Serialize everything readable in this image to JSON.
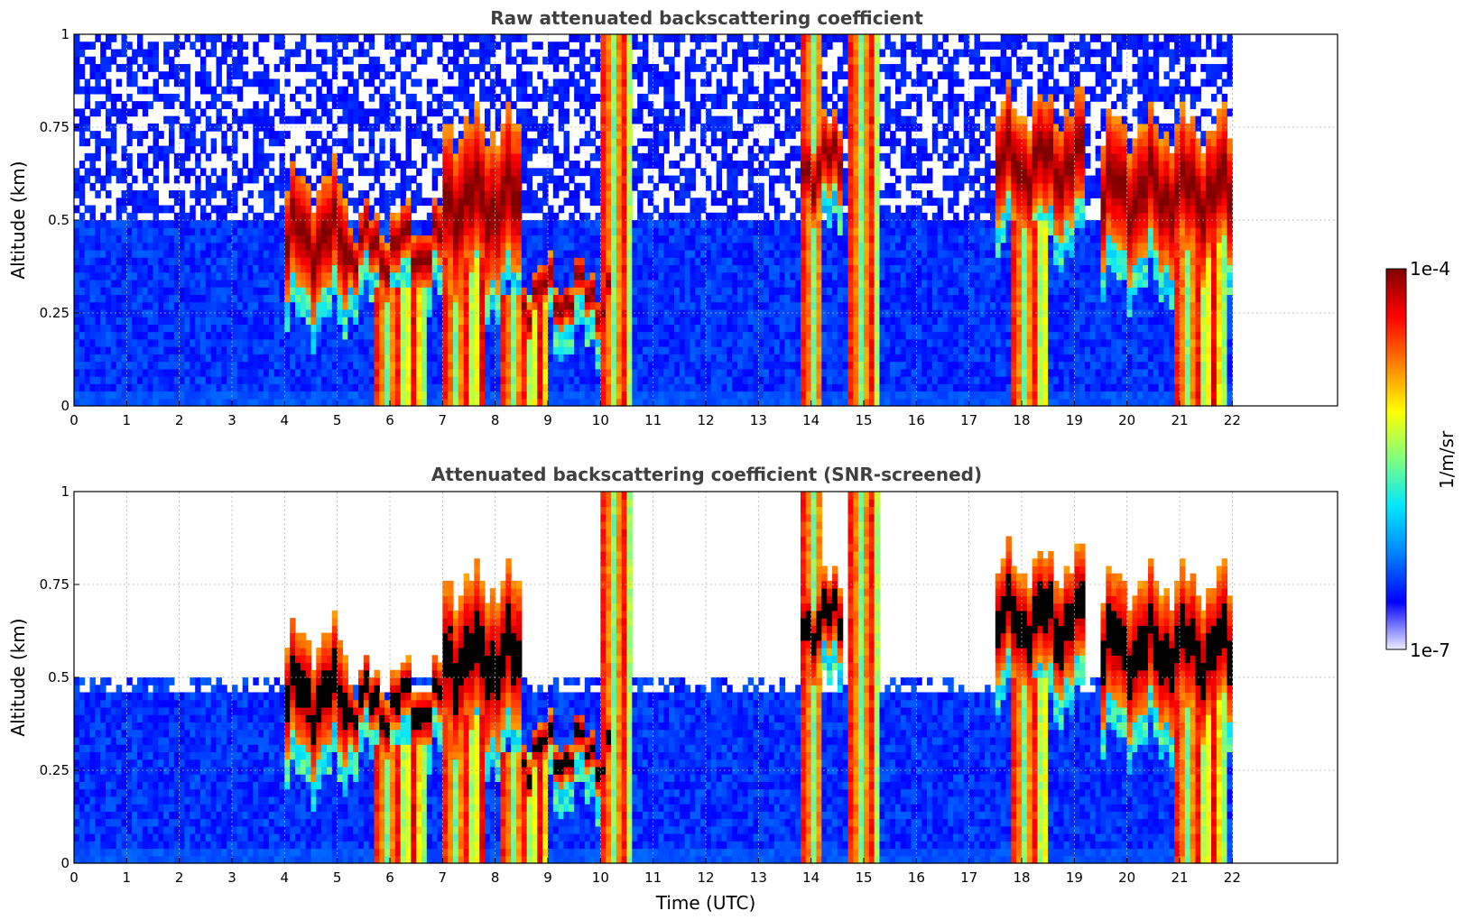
{
  "chart_data": [
    {
      "type": "heatmap",
      "panel": "top",
      "title": "Raw attenuated backscattering coefficient",
      "xlabel": "",
      "ylabel": "Altitude (km)",
      "xlim": [
        0,
        24
      ],
      "ylim": [
        0,
        1
      ],
      "x_ticks": [
        "0",
        "1",
        "2",
        "3",
        "4",
        "5",
        "6",
        "7",
        "8",
        "9",
        "10",
        "11",
        "12",
        "13",
        "14",
        "15",
        "16",
        "17",
        "18",
        "19",
        "20",
        "21",
        "22"
      ],
      "y_ticks": [
        "0",
        "0.25",
        "0.5",
        "0.75",
        "1"
      ],
      "data_end_time": 22,
      "grid": true,
      "clouds": [
        {
          "t0": 4.0,
          "t1": 5.2,
          "base": 0.3,
          "top": 0.6
        },
        {
          "t0": 5.2,
          "t1": 7.0,
          "base": 0.35,
          "top": 0.5
        },
        {
          "t0": 7.0,
          "t1": 8.5,
          "base": 0.35,
          "top": 0.75
        },
        {
          "t0": 8.5,
          "t1": 10.2,
          "base": 0.25,
          "top": 0.35
        },
        {
          "t0": 13.8,
          "t1": 14.6,
          "base": 0.55,
          "top": 0.75
        },
        {
          "t0": 17.5,
          "t1": 19.2,
          "base": 0.5,
          "top": 0.8
        },
        {
          "t0": 19.5,
          "t1": 22.0,
          "base": 0.4,
          "top": 0.75
        }
      ],
      "precip_columns": [
        {
          "t0": 5.7,
          "t1": 6.7,
          "top": 0.32
        },
        {
          "t0": 7.0,
          "t1": 7.8,
          "top": 0.4
        },
        {
          "t0": 8.1,
          "t1": 9.0,
          "top": 0.3
        },
        {
          "t0": 10.0,
          "t1": 10.6,
          "top": 1.0
        },
        {
          "t0": 13.8,
          "t1": 14.2,
          "top": 1.0
        },
        {
          "t0": 14.7,
          "t1": 15.3,
          "top": 1.0
        },
        {
          "t0": 17.8,
          "t1": 18.5,
          "top": 0.5
        },
        {
          "t0": 20.9,
          "t1": 21.9,
          "top": 0.45
        }
      ]
    },
    {
      "type": "heatmap",
      "panel": "bottom",
      "title": "Attenuated backscattering coefficient (SNR-screened)",
      "xlabel": "Time (UTC)",
      "ylabel": "Altitude (km)",
      "xlim": [
        0,
        24
      ],
      "ylim": [
        0,
        1
      ],
      "x_ticks": [
        "0",
        "1",
        "2",
        "3",
        "4",
        "5",
        "6",
        "7",
        "8",
        "9",
        "10",
        "11",
        "12",
        "13",
        "14",
        "15",
        "16",
        "17",
        "18",
        "19",
        "20",
        "21",
        "22"
      ],
      "y_ticks": [
        "0",
        "0.25",
        "0.5",
        "0.75",
        "1"
      ],
      "data_end_time": 22,
      "grid": true
    }
  ],
  "colorbar": {
    "label": "1/m/sr",
    "max_label": "1e-4",
    "min_label": "1e-7",
    "colormap": [
      "#ededff",
      "#0000ff",
      "#0080ff",
      "#00e6ff",
      "#80ff80",
      "#ffff00",
      "#ff8000",
      "#ff0000",
      "#800000"
    ]
  },
  "colors": {
    "screened_cloud": "#000000",
    "background": "#ffffff",
    "grid": "#b0b0b0"
  }
}
